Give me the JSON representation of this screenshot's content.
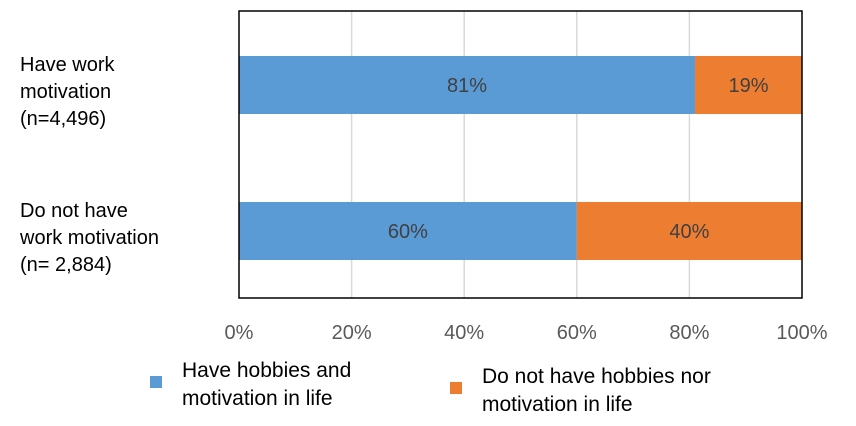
{
  "chart_data": {
    "type": "bar",
    "orientation": "horizontal",
    "stacked": true,
    "title": "",
    "xlabel": "",
    "ylabel": "",
    "xlim": [
      0,
      100
    ],
    "x_ticks": [
      "0%",
      "20%",
      "40%",
      "60%",
      "80%",
      "100%"
    ],
    "grid": "vertical",
    "legend_position": "bottom",
    "categories": [
      {
        "lines": [
          "Have work",
          "motivation",
          "(n=4,496)"
        ]
      },
      {
        "lines": [
          "Do not have",
          "work motivation",
          "(n= 2,884)"
        ]
      }
    ],
    "series": [
      {
        "name_lines": [
          "Have hobbies and",
          "motivation in life"
        ],
        "color": "#5B9BD5",
        "values": [
          81,
          60
        ],
        "labels": [
          "81%",
          "60%"
        ]
      },
      {
        "name_lines": [
          "Do not have hobbies nor",
          "motivation in life"
        ],
        "color": "#ED7D31",
        "values": [
          19,
          40
        ],
        "labels": [
          "19%",
          "40%"
        ]
      }
    ]
  }
}
